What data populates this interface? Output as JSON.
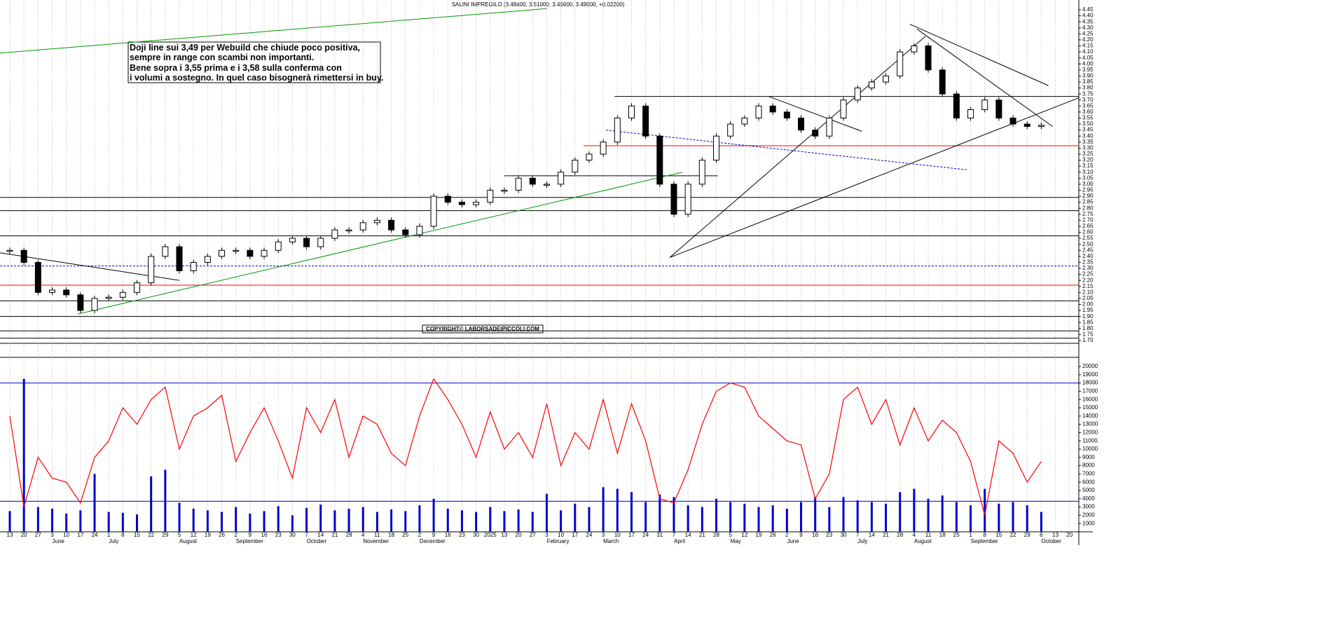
{
  "chart_data": {
    "type": "candlestick",
    "title": "SALINI IMPREGILO (3.48400, 3.51000, 3.45600, 3.49000, +0.02200)",
    "annotation": [
      "Doji line sui 3,49 per Webuild che chiude poco positiva,",
      "sempre in range con scambi non importanti.",
      "Bene sopra i 3,55 prima e i 3,58 sulla conferma con",
      "i volumi a sostegno. In quel caso bisognerà rimettersi in buy."
    ],
    "copyright": "COPYRIGHT© LABORSADEIPICCOLI.COM",
    "categories": [
      "13",
      "20",
      "27",
      "3",
      "10",
      "17",
      "24",
      "1",
      "8",
      "15",
      "22",
      "29",
      "5",
      "12",
      "19",
      "26",
      "2",
      "9",
      "16",
      "23",
      "30",
      "7",
      "14",
      "21",
      "28",
      "4",
      "11",
      "18",
      "25",
      "2",
      "9",
      "16",
      "23",
      "30",
      "2025",
      "13",
      "20",
      "27",
      "3",
      "10",
      "17",
      "24",
      "3",
      "10",
      "17",
      "24",
      "31",
      "7",
      "14",
      "21",
      "28",
      "5",
      "12",
      "19",
      "26",
      "2",
      "9",
      "16",
      "23",
      "30",
      "7",
      "14",
      "21",
      "28",
      "4",
      "11",
      "18",
      "25",
      "1",
      "8",
      "15",
      "22",
      "29",
      "6",
      "13",
      "20"
    ],
    "months": [
      null,
      null,
      null,
      "June",
      null,
      null,
      null,
      "July",
      null,
      null,
      null,
      null,
      "August",
      null,
      null,
      null,
      "September",
      null,
      null,
      null,
      null,
      "October",
      null,
      null,
      null,
      "November",
      null,
      null,
      null,
      "December",
      null,
      null,
      null,
      null,
      null,
      null,
      null,
      null,
      "February",
      null,
      null,
      null,
      "March",
      null,
      null,
      null,
      null,
      "April",
      null,
      null,
      null,
      "May",
      null,
      null,
      null,
      "June",
      null,
      null,
      null,
      null,
      "July",
      null,
      null,
      null,
      "August",
      null,
      null,
      null,
      "September",
      null,
      null,
      null,
      null,
      "October",
      null,
      null
    ],
    "close": [
      2.45,
      2.35,
      2.1,
      2.12,
      2.08,
      1.95,
      2.05,
      2.06,
      2.1,
      2.18,
      2.4,
      2.48,
      2.28,
      2.35,
      2.4,
      2.45,
      2.45,
      2.4,
      2.45,
      2.52,
      2.55,
      2.48,
      2.55,
      2.62,
      2.62,
      2.68,
      2.7,
      2.62,
      2.58,
      2.65,
      2.9,
      2.85,
      2.83,
      2.85,
      2.95,
      2.95,
      3.05,
      3.0,
      3.0,
      3.1,
      3.2,
      3.25,
      3.35,
      3.55,
      3.65,
      3.4,
      3.0,
      2.75,
      3.0,
      3.2,
      3.4,
      3.5,
      3.55,
      3.65,
      3.6,
      3.55,
      3.45,
      3.4,
      3.55,
      3.7,
      3.8,
      3.85,
      3.9,
      4.1,
      4.15,
      3.95,
      3.75,
      3.55,
      3.62,
      3.7,
      3.55,
      3.5,
      3.48,
      3.49,
      null,
      null
    ],
    "volume": [
      2500,
      18500,
      3000,
      2800,
      2200,
      2600,
      7000,
      2400,
      2300,
      2100,
      6700,
      7500,
      3500,
      2800,
      2600,
      2400,
      3000,
      2200,
      2500,
      3100,
      2000,
      2900,
      3300,
      2600,
      2800,
      3000,
      2400,
      2700,
      2500,
      3200,
      4000,
      2800,
      2600,
      2400,
      3000,
      2500,
      2700,
      2400,
      4600,
      2600,
      3400,
      3000,
      5400,
      5200,
      4800,
      3600,
      4500,
      4200,
      3200,
      3000,
      4000,
      3600,
      3400,
      3000,
      3200,
      2800,
      3600,
      4200,
      3000,
      4200,
      3800,
      3600,
      3400,
      4800,
      5200,
      4000,
      4400,
      3600,
      3200,
      5200,
      3400,
      3600,
      3200,
      2400,
      null,
      null
    ],
    "oscillator": [
      14000,
      3000,
      9000,
      6500,
      6000,
      3500,
      9000,
      11000,
      15000,
      13000,
      16000,
      17500,
      10000,
      14000,
      15000,
      16500,
      8500,
      12000,
      15000,
      11000,
      6500,
      15000,
      12000,
      16000,
      9000,
      14000,
      13000,
      9500,
      8000,
      14000,
      18500,
      16000,
      13000,
      9000,
      14500,
      10000,
      12000,
      9000,
      15500,
      8000,
      12000,
      10000,
      16000,
      9500,
      15500,
      11000,
      4000,
      3500,
      7500,
      13000,
      17000,
      18000,
      17500,
      14000,
      12500,
      11000,
      10500,
      4000,
      7000,
      16000,
      17500,
      13000,
      16000,
      10500,
      15000,
      11000,
      13500,
      12000,
      8500,
      2000,
      11000,
      9500,
      6000,
      8500,
      null,
      null
    ],
    "candle_color_up": "#ffffff",
    "candle_color_down": "#000000",
    "oscillator_color": "#ff0000",
    "volume_color": "#0000cc",
    "ylim": [
      1.7,
      4.45
    ],
    "yticks": [
      {
        "value": 1.7,
        "label": "1.70"
      },
      {
        "value": 1.75,
        "label": "1.75"
      },
      {
        "value": 1.8,
        "label": "1.80"
      },
      {
        "value": 1.85,
        "label": "1.85"
      },
      {
        "value": 1.9,
        "label": "1.90"
      },
      {
        "value": 1.95,
        "label": "1.95"
      },
      {
        "value": 2.0,
        "label": "2.00"
      },
      {
        "value": 2.05,
        "label": "2.05"
      },
      {
        "value": 2.1,
        "label": "2.10"
      },
      {
        "value": 2.15,
        "label": "2.15"
      },
      {
        "value": 2.2,
        "label": "2.20"
      },
      {
        "value": 2.25,
        "label": "2.25"
      },
      {
        "value": 2.3,
        "label": "2.30"
      },
      {
        "value": 2.35,
        "label": "2.35"
      },
      {
        "value": 2.4,
        "label": "2.40"
      },
      {
        "value": 2.45,
        "label": "2.45"
      },
      {
        "value": 2.5,
        "label": "2.50"
      },
      {
        "value": 2.55,
        "label": "2.55"
      },
      {
        "value": 2.6,
        "label": "2.60"
      },
      {
        "value": 2.65,
        "label": "2.65"
      },
      {
        "value": 2.7,
        "label": "2.70"
      },
      {
        "value": 2.75,
        "label": "2.75"
      },
      {
        "value": 2.8,
        "label": "2.80"
      },
      {
        "value": 2.85,
        "label": "2.85"
      },
      {
        "value": 2.9,
        "label": "2.90"
      },
      {
        "value": 2.95,
        "label": "2.95"
      },
      {
        "value": 3.0,
        "label": "3.00"
      },
      {
        "value": 3.05,
        "label": "3.05"
      },
      {
        "value": 3.1,
        "label": "3.10"
      },
      {
        "value": 3.15,
        "label": "3.15"
      },
      {
        "value": 3.2,
        "label": "3.20"
      },
      {
        "value": 3.25,
        "label": "3.25"
      },
      {
        "value": 3.3,
        "label": "3.30"
      },
      {
        "value": 3.35,
        "label": "3.35"
      },
      {
        "value": 3.4,
        "label": "3.40"
      },
      {
        "value": 3.45,
        "label": "3.45"
      },
      {
        "value": 3.5,
        "label": "3.50"
      },
      {
        "value": 3.55,
        "label": "3.55"
      },
      {
        "value": 3.6,
        "label": "3.60"
      },
      {
        "value": 3.65,
        "label": "3.65"
      },
      {
        "value": 3.7,
        "label": "3.70"
      },
      {
        "value": 3.75,
        "label": "3.75"
      },
      {
        "value": 3.8,
        "label": "3.80"
      },
      {
        "value": 3.85,
        "label": "3.85"
      },
      {
        "value": 3.9,
        "label": "3.90"
      },
      {
        "value": 3.95,
        "label": "3.95"
      },
      {
        "value": 4.0,
        "label": "4.00"
      },
      {
        "value": 4.05,
        "label": "4.05"
      },
      {
        "value": 4.1,
        "label": "4.10"
      },
      {
        "value": 4.15,
        "label": "4.15"
      },
      {
        "value": 4.2,
        "label": "4.20"
      },
      {
        "value": 4.25,
        "label": "4.25"
      },
      {
        "value": 4.3,
        "label": "4.30"
      },
      {
        "value": 4.35,
        "label": "4.35"
      },
      {
        "value": 4.4,
        "label": "4.40"
      },
      {
        "value": 4.45,
        "label": "4.45"
      }
    ],
    "y2lim": [
      0,
      20000
    ],
    "y2ticks": [
      1000,
      2000,
      3000,
      4000,
      5000,
      6000,
      7000,
      8000,
      9000,
      10000,
      11000,
      12000,
      13000,
      14000,
      15000,
      16000,
      17000,
      18000,
      19000,
      20000
    ],
    "levels": [
      {
        "value": 2.89,
        "color": "#000000"
      },
      {
        "value": 2.78,
        "color": "#000000"
      },
      {
        "value": 2.57,
        "color": "#000000"
      },
      {
        "value": 2.03,
        "color": "#000000"
      },
      {
        "value": 1.9,
        "color": "#000000"
      },
      {
        "value": 1.78,
        "color": "#000000"
      },
      {
        "value": 1.72,
        "color": "#000000"
      },
      {
        "value": 2.16,
        "color": "#ff0000"
      },
      {
        "value": 2.32,
        "color": "#0000cc",
        "dashed": true
      },
      {
        "value": 3.73,
        "color": "#000000",
        "from": 42.8
      },
      {
        "value": 3.32,
        "color": "#ff0000",
        "from": 40.6
      },
      {
        "value": 3.07,
        "color": "#000000",
        "from": 35,
        "to": 50.1
      }
    ],
    "volume_levels": [
      {
        "value": 18000,
        "color": "#0000cc"
      },
      {
        "value": 3700,
        "color": "#0000cc"
      }
    ],
    "trendlines": [
      {
        "x": [
          4.8,
          47.6
        ],
        "y": [
          1.92,
          3.1
        ],
        "color": "#009900"
      },
      {
        "x": [
          -0.7,
          38
        ],
        "y": [
          4.09,
          4.46
        ],
        "color": "#009900"
      },
      {
        "x": [
          46.7,
          64.8
        ],
        "y": [
          2.39,
          4.23
        ],
        "color": "#000000"
      },
      {
        "x": [
          46.7,
          75.7
        ],
        "y": [
          2.39,
          3.72
        ],
        "color": "#000000"
      },
      {
        "x": [
          63.7,
          73.5
        ],
        "y": [
          4.33,
          3.82
        ],
        "color": "#000000"
      },
      {
        "x": [
          64.2,
          73.8
        ],
        "y": [
          4.29,
          3.48
        ],
        "color": "#000000"
      },
      {
        "x": [
          53.7,
          60.3
        ],
        "y": [
          3.73,
          3.44
        ],
        "color": "#000000"
      },
      {
        "x": [
          -0.7,
          12
        ],
        "y": [
          2.43,
          2.2
        ],
        "color": "#000000"
      },
      {
        "x": [
          42.2,
          67.7
        ],
        "y": [
          3.45,
          3.12
        ],
        "color": "#0000cc",
        "dashed": true
      }
    ]
  }
}
